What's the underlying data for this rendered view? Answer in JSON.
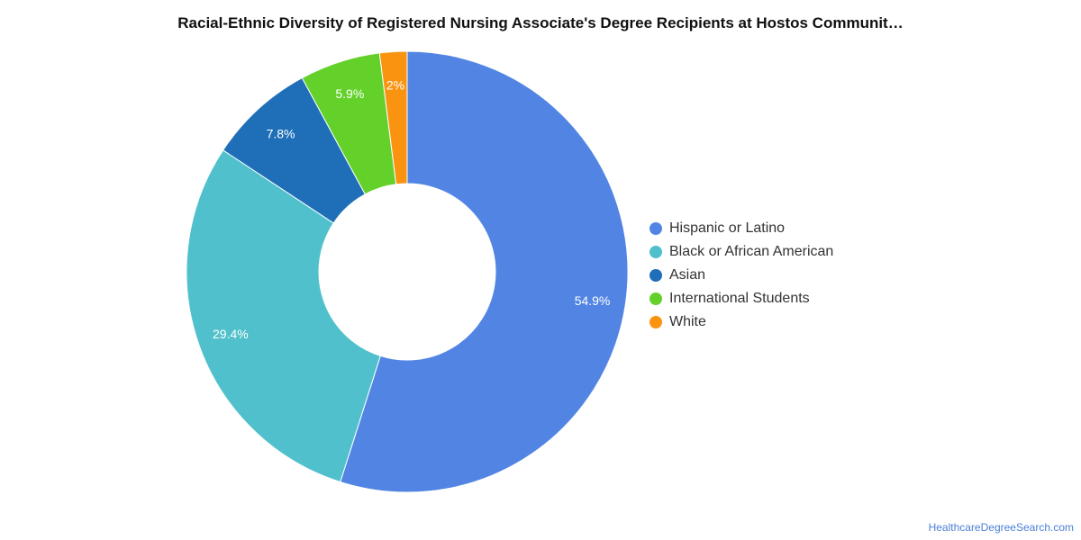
{
  "chart_data": {
    "type": "pie",
    "donut": true,
    "title": "Racial-Ethnic Diversity of Registered Nursing Associate's Degree Recipients at Hostos Communit…",
    "categories": [
      "Hispanic or Latino",
      "Black or African American",
      "Asian",
      "International Students",
      "White"
    ],
    "values": [
      54.9,
      29.4,
      7.8,
      5.9,
      2
    ],
    "data_labels": [
      "54.9%",
      "29.4%",
      "7.8%",
      "5.9%",
      "2%"
    ],
    "colors": [
      "#5285e3",
      "#50c1cc",
      "#1f6fb8",
      "#64d12b",
      "#fa930f"
    ],
    "legend_position": "right"
  },
  "source": "HealthcareDegreeSearch.com"
}
